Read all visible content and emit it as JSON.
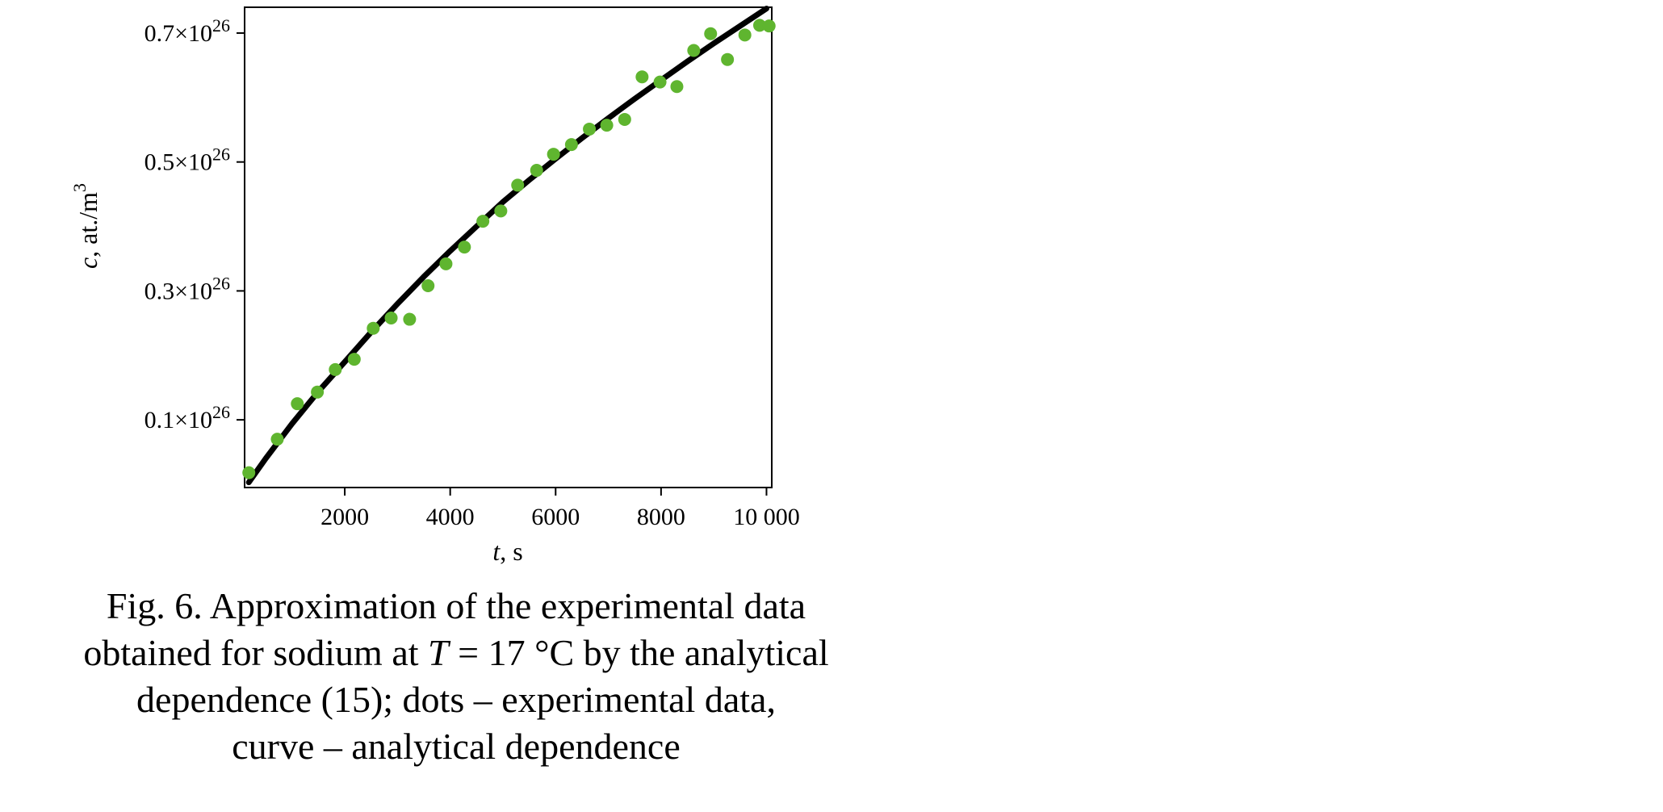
{
  "chart_data": {
    "type": "scatter",
    "xlim": [
      100,
      10100
    ],
    "ylim": [
      -0.005,
      0.74
    ],
    "x_ticks": [
      {
        "value": 2000,
        "label": "2000"
      },
      {
        "value": 4000,
        "label": "4000"
      },
      {
        "value": 6000,
        "label": "6000"
      },
      {
        "value": 8000,
        "label": "8000"
      },
      {
        "value": 10000,
        "label": "10 000"
      }
    ],
    "y_ticks": [
      {
        "value": 0.1,
        "mantissa": "0.1×10",
        "exponent": "26"
      },
      {
        "value": 0.3,
        "mantissa": "0.3×10",
        "exponent": "26"
      },
      {
        "value": 0.5,
        "mantissa": "0.5×10",
        "exponent": "26"
      },
      {
        "value": 0.7,
        "mantissa": "0.7×10",
        "exponent": "26"
      }
    ],
    "xlabel": {
      "var": "t",
      "rest": ", s"
    },
    "ylabel": {
      "var": "c",
      "rest": ", at./m",
      "sup": "3"
    },
    "grid": false,
    "dot_color": "#5fb52f",
    "curve_color": "#000000",
    "experimental": {
      "x": [
        180,
        720,
        1100,
        1480,
        1820,
        2180,
        2540,
        2880,
        3230,
        3580,
        3920,
        4270,
        4620,
        4960,
        5280,
        5640,
        5960,
        6300,
        6640,
        6970,
        7310,
        7640,
        7980,
        8300,
        8620,
        8940,
        9260,
        9590,
        9870,
        10050
      ],
      "y": [
        0.018,
        0.07,
        0.125,
        0.143,
        0.178,
        0.194,
        0.242,
        0.258,
        0.256,
        0.308,
        0.342,
        0.368,
        0.408,
        0.424,
        0.464,
        0.487,
        0.512,
        0.527,
        0.551,
        0.557,
        0.566,
        0.632,
        0.624,
        0.617,
        0.673,
        0.699,
        0.659,
        0.697,
        0.712,
        0.711
      ]
    },
    "analytical": {
      "x": [
        180,
        500,
        1000,
        1500,
        2000,
        2500,
        3000,
        3500,
        4000,
        4500,
        5000,
        5500,
        6000,
        6500,
        7000,
        7500,
        8000,
        8500,
        9000,
        9500,
        10000
      ],
      "y": [
        0.003,
        0.04,
        0.094,
        0.144,
        0.19,
        0.236,
        0.28,
        0.322,
        0.362,
        0.4,
        0.438,
        0.472,
        0.505,
        0.537,
        0.568,
        0.598,
        0.627,
        0.656,
        0.684,
        0.711,
        0.738
      ]
    }
  },
  "caption": {
    "line1": "Fig. 6. Approximation of the experimental data",
    "line2_pre": "obtained for sodium at ",
    "line2_var": "T",
    "line2_post": " = 17 °C by the analytical",
    "line3": "dependence (15); dots – experimental data,",
    "line4": "curve – analytical dependence"
  }
}
